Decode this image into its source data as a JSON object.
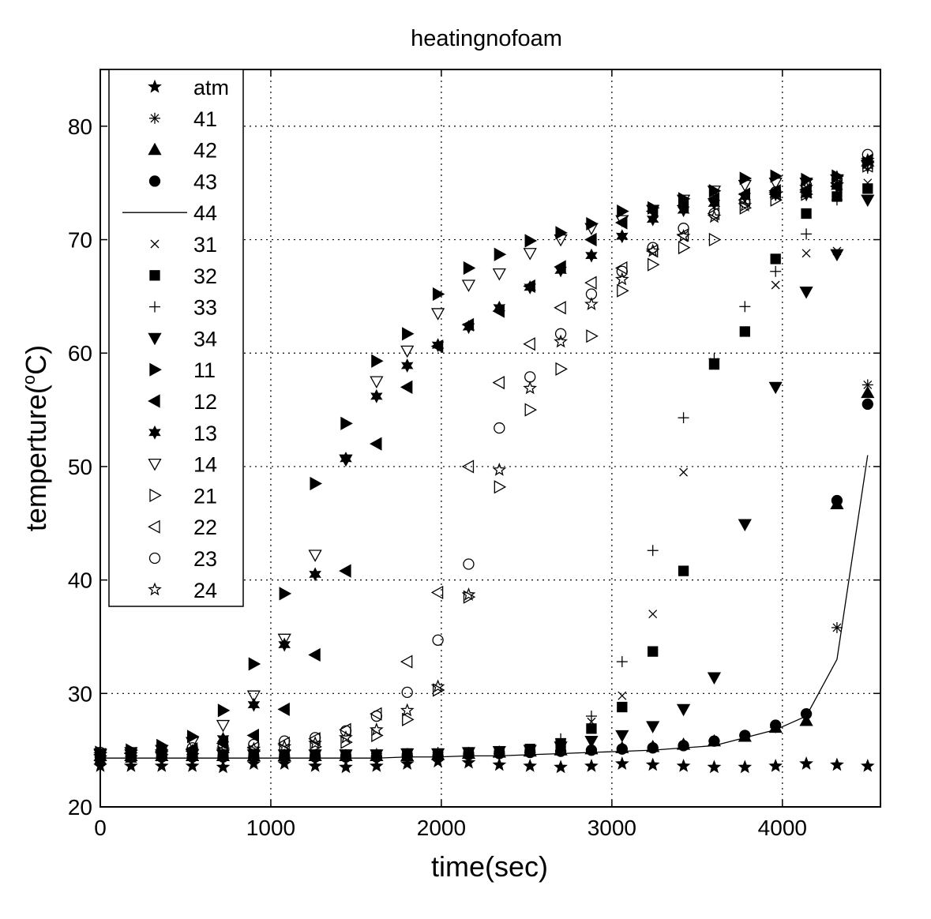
{
  "chart_data": {
    "type": "scatter",
    "title": "heatingnofoam",
    "xlabel": "time(sec)",
    "ylabel_main": "temperture(",
    "ylabel_sup": "o",
    "ylabel_end": "C)",
    "xlim": [
      0,
      4575
    ],
    "ylim": [
      20,
      85
    ],
    "xticks": [
      0,
      1000,
      2000,
      3000,
      4000
    ],
    "yticks": [
      20,
      30,
      40,
      50,
      60,
      70,
      80
    ],
    "grid": true,
    "legend_position": "top-left",
    "x": [
      0,
      180,
      360,
      540,
      720,
      900,
      1080,
      1260,
      1440,
      1620,
      1800,
      1980,
      2160,
      2340,
      2520,
      2700,
      2880,
      3060,
      3240,
      3420,
      3600,
      3780,
      3960,
      4140,
      4320,
      4500
    ],
    "series": [
      {
        "name": "atm",
        "marker": "pentagram-filled",
        "values": [
          23.6,
          23.6,
          23.6,
          23.6,
          23.5,
          23.8,
          23.8,
          23.6,
          23.5,
          23.6,
          23.8,
          24.0,
          23.9,
          23.7,
          23.6,
          23.5,
          23.6,
          23.8,
          23.7,
          23.6,
          23.5,
          23.5,
          23.6,
          23.8,
          23.7,
          23.6
        ]
      },
      {
        "name": "41",
        "marker": "asterisk",
        "values": [
          24.4,
          24.4,
          24.4,
          24.4,
          24.4,
          24.4,
          24.4,
          24.4,
          24.4,
          24.5,
          24.5,
          24.5,
          24.6,
          24.7,
          24.8,
          24.9,
          25.0,
          25.1,
          25.2,
          25.4,
          25.8,
          26.3,
          27.0,
          28.2,
          35.8,
          57.2
        ]
      },
      {
        "name": "42",
        "marker": "triangle-up-filled",
        "values": [
          24.5,
          24.5,
          24.5,
          24.5,
          24.5,
          24.5,
          24.5,
          24.5,
          24.5,
          24.5,
          24.5,
          24.6,
          24.7,
          24.8,
          24.9,
          25.0,
          25.1,
          25.2,
          25.3,
          25.5,
          25.8,
          26.2,
          27.0,
          27.6,
          46.7,
          56.5
        ]
      },
      {
        "name": "43",
        "marker": "circle-filled",
        "values": [
          24.5,
          24.4,
          24.4,
          24.4,
          24.4,
          24.4,
          24.4,
          24.4,
          24.4,
          24.4,
          24.5,
          24.5,
          24.6,
          24.7,
          24.8,
          24.9,
          25.0,
          25.1,
          25.2,
          25.4,
          25.8,
          26.3,
          27.2,
          28.2,
          47.0,
          55.5
        ]
      },
      {
        "name": "44",
        "marker": "line",
        "values": [
          24.3,
          24.3,
          24.3,
          24.3,
          24.3,
          24.3,
          24.3,
          24.3,
          24.3,
          24.3,
          24.4,
          24.4,
          24.5,
          24.5,
          24.6,
          24.7,
          24.8,
          24.9,
          25.0,
          25.2,
          25.4,
          26.1,
          26.8,
          28.0,
          33.0,
          51.0
        ]
      },
      {
        "name": "31",
        "marker": "x",
        "values": [
          24.6,
          24.6,
          24.6,
          24.6,
          24.6,
          24.6,
          24.6,
          24.6,
          24.6,
          24.6,
          24.7,
          24.7,
          24.8,
          24.9,
          25.0,
          25.5,
          27.5,
          29.8,
          37.0,
          49.5,
          59.2,
          61.8,
          66.0,
          68.8,
          69.0,
          75.0
        ]
      },
      {
        "name": "32",
        "marker": "square-filled",
        "values": [
          24.6,
          24.6,
          24.6,
          24.6,
          24.6,
          24.6,
          24.6,
          24.6,
          24.6,
          24.6,
          24.7,
          24.7,
          24.8,
          24.9,
          25.1,
          25.6,
          26.9,
          28.8,
          33.7,
          40.8,
          59.0,
          61.9,
          68.3,
          72.3,
          73.8,
          74.5
        ]
      },
      {
        "name": "33",
        "marker": "plus",
        "values": [
          24.6,
          24.6,
          24.6,
          24.6,
          24.6,
          24.6,
          24.6,
          24.6,
          24.6,
          24.7,
          24.7,
          24.8,
          24.8,
          24.9,
          25.0,
          26.0,
          28.0,
          32.8,
          42.6,
          54.3,
          59.5,
          64.1,
          67.2,
          70.5,
          73.5,
          76.3
        ]
      },
      {
        "name": "34",
        "marker": "triangle-down-filled",
        "values": [
          24.6,
          24.6,
          24.6,
          24.6,
          24.6,
          24.6,
          24.6,
          24.6,
          24.6,
          24.6,
          24.7,
          24.7,
          24.8,
          24.9,
          25.0,
          25.3,
          25.8,
          26.3,
          27.1,
          28.6,
          31.4,
          44.9,
          57.0,
          65.4,
          68.7,
          73.5
        ]
      },
      {
        "name": "11",
        "marker": "triangle-right-filled",
        "values": [
          24.8,
          25.0,
          25.4,
          26.2,
          28.5,
          32.6,
          38.8,
          48.5,
          53.8,
          59.3,
          61.7,
          65.2,
          67.5,
          68.7,
          69.9,
          70.6,
          71.4,
          72.5,
          72.8,
          73.6,
          74.3,
          75.4,
          75.6,
          75.3,
          75.6,
          76.8
        ]
      },
      {
        "name": "12",
        "marker": "triangle-left-filled",
        "values": [
          24.6,
          24.7,
          24.8,
          25.1,
          25.6,
          26.3,
          28.6,
          33.4,
          40.8,
          52.0,
          57.0,
          60.6,
          62.5,
          63.7,
          65.9,
          67.6,
          70.0,
          71.5,
          72.5,
          73.0,
          73.6,
          74.0,
          74.3,
          74.4,
          74.7,
          77.0
        ]
      },
      {
        "name": "13",
        "marker": "hexagram-filled",
        "values": [
          24.1,
          24.2,
          24.4,
          24.9,
          26.0,
          29.0,
          34.3,
          40.5,
          50.7,
          56.2,
          58.9,
          60.7,
          62.3,
          64.0,
          65.8,
          67.3,
          68.6,
          70.3,
          71.8,
          72.6,
          73.2,
          73.8,
          74.0,
          74.0,
          74.7,
          76.9
        ]
      },
      {
        "name": "14",
        "marker": "triangle-down-open",
        "values": [
          24.7,
          24.8,
          25.0,
          25.7,
          27.2,
          29.8,
          34.8,
          42.2,
          50.6,
          57.5,
          60.2,
          63.5,
          66.0,
          67.0,
          68.8,
          70.0,
          71.0,
          71.7,
          72.6,
          73.5,
          74.3,
          74.8,
          75.0,
          75.0,
          75.3,
          76.5
        ]
      },
      {
        "name": "21",
        "marker": "triangle-right-open",
        "values": [
          24.5,
          24.5,
          24.6,
          24.7,
          24.8,
          24.9,
          25.0,
          25.3,
          25.7,
          26.3,
          27.7,
          30.3,
          38.5,
          48.2,
          55.0,
          58.6,
          61.5,
          65.5,
          67.8,
          69.3,
          70.0,
          72.8,
          73.5,
          74.0,
          75.0,
          76.5
        ]
      },
      {
        "name": "22",
        "marker": "triangle-left-open",
        "values": [
          24.6,
          24.7,
          24.8,
          24.9,
          25.0,
          25.2,
          25.6,
          26.0,
          26.8,
          28.2,
          32.8,
          38.9,
          50.0,
          57.4,
          60.8,
          64.0,
          66.2,
          67.5,
          69.0,
          70.4,
          72.3,
          73.5,
          74.0,
          74.2,
          75.0,
          76.5
        ]
      },
      {
        "name": "23",
        "marker": "circle-open",
        "values": [
          24.8,
          24.8,
          25.0,
          25.2,
          25.3,
          25.5,
          25.8,
          26.1,
          26.7,
          28.0,
          30.1,
          34.7,
          41.4,
          53.4,
          57.9,
          61.7,
          65.2,
          67.2,
          69.3,
          71.0,
          72.3,
          73.3,
          74.2,
          74.8,
          75.3,
          77.5
        ]
      },
      {
        "name": "24",
        "marker": "pentagram-open",
        "values": [
          24.6,
          24.6,
          24.7,
          24.9,
          25.0,
          25.1,
          25.3,
          25.6,
          26.1,
          26.8,
          28.5,
          30.6,
          38.7,
          49.7,
          56.9,
          61.0,
          64.3,
          66.5,
          69.0,
          70.3,
          72.0,
          73.0,
          74.0,
          74.6,
          75.5,
          77.0
        ]
      }
    ]
  }
}
